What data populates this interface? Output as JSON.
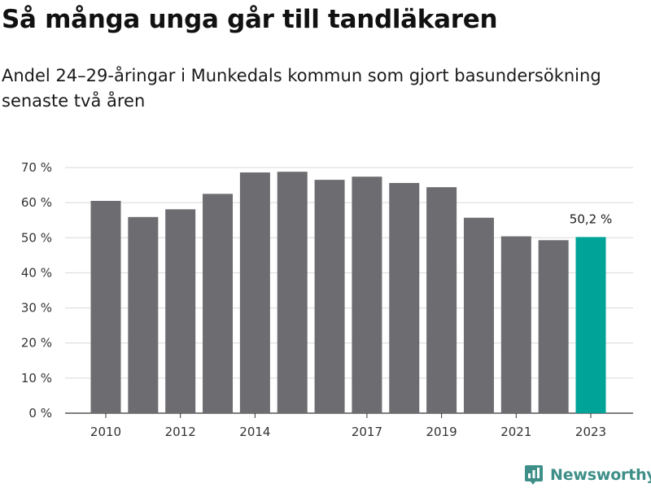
{
  "header": {
    "title": "Så många unga går till tandläkaren",
    "subtitle": "Andel 24–29-åringar i Munkedals kommun som gjort basundersökning senaste två åren"
  },
  "chart_data": {
    "type": "bar",
    "categories": [
      "2010",
      "2011",
      "2012",
      "2013",
      "2014",
      "2015",
      "2016",
      "2017",
      "2018",
      "2019",
      "2020",
      "2021",
      "2022",
      "2023"
    ],
    "x_tick_labels": [
      "2010",
      "",
      "2012",
      "",
      "2014",
      "",
      "",
      "2017",
      "",
      "2019",
      "",
      "2021",
      "",
      "2023"
    ],
    "values": [
      60.5,
      55.9,
      58.1,
      62.5,
      68.6,
      68.8,
      66.5,
      67.4,
      65.6,
      64.4,
      55.7,
      50.4,
      49.3,
      50.2
    ],
    "ylim": [
      0,
      70
    ],
    "y_ticks": [
      0,
      10,
      20,
      30,
      40,
      50,
      60,
      70
    ],
    "y_tick_labels": [
      "0 %",
      "10 %",
      "20 %",
      "30 %",
      "40 %",
      "50 %",
      "60 %",
      "70 %"
    ],
    "grid": true,
    "bar_color": "#6d6c70",
    "highlight_color": "#00a398",
    "highlight_index": 13,
    "annotation": "50,2 %"
  },
  "branding": {
    "name": "Newsworthy",
    "color": "#3e8f88",
    "icon": "newsworthy-logo-icon"
  }
}
